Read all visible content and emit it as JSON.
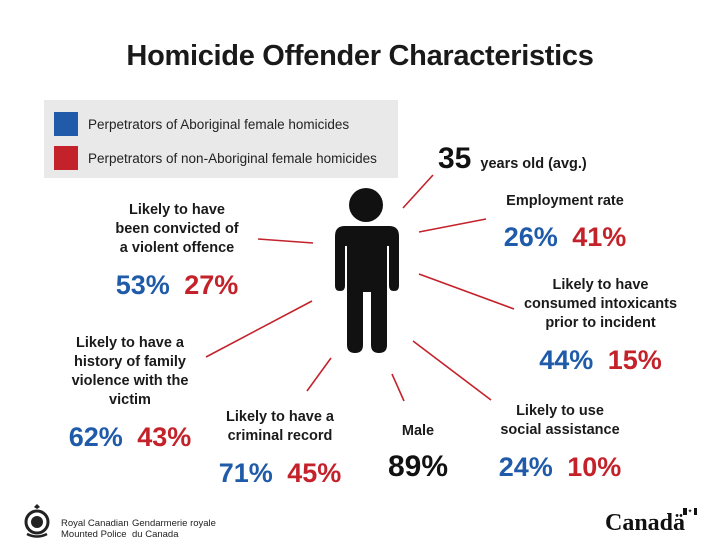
{
  "title": "Homicide Offender Characteristics",
  "colors": {
    "blue": "#1f5ba8",
    "red": "#c4222b"
  },
  "legend": {
    "aboriginal": "Perpetrators of Aboriginal female homicides",
    "non_aboriginal": "Perpetrators of  non-Aboriginal female homicides"
  },
  "age": {
    "value": "35",
    "label": "years old (avg.)"
  },
  "stats": {
    "employment": {
      "label": [
        "Employment rate"
      ],
      "blue": "26%",
      "red": "41%"
    },
    "violent": {
      "label": [
        "Likely to have",
        "been convicted of",
        "a violent offence"
      ],
      "blue": "53%",
      "red": "27%"
    },
    "intoxicants": {
      "label": [
        "Likely to have",
        "consumed intoxicants",
        "prior to incident"
      ],
      "blue": "44%",
      "red": "15%"
    },
    "family": {
      "label": [
        "Likely to have a",
        "history of family",
        "violence with the",
        "victim"
      ],
      "blue": "62%",
      "red": "43%"
    },
    "criminal": {
      "label": [
        "Likely to have a",
        "criminal record"
      ],
      "blue": "71%",
      "red": "45%"
    },
    "male": {
      "label": [
        "Male"
      ],
      "value": "89%"
    },
    "assistance": {
      "label": [
        "Likely to use",
        "social assistance"
      ],
      "blue": "24%",
      "red": "10%"
    }
  },
  "footer": {
    "rcmp_en_1": "Royal Canadian",
    "rcmp_en_2": "Mounted Police",
    "rcmp_fr_1": "Gendarmerie royale",
    "rcmp_fr_2": "du Canada",
    "wordmark": "Canadä"
  },
  "icons": {
    "person": "person-icon",
    "crest": "rcmp-crest-icon",
    "flag": "canada-flag-icon"
  }
}
